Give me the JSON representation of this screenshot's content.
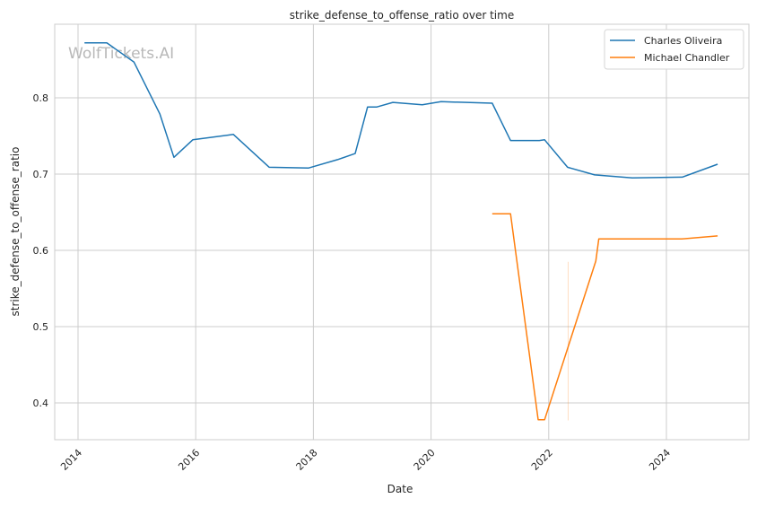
{
  "watermark": "WolfTickets.AI",
  "chart_data": {
    "type": "line",
    "title": "strike_defense_to_offense_ratio over time",
    "xlabel": "Date",
    "ylabel": "strike_defense_to_offense_ratio",
    "xlim": [
      2013.6,
      2025.4
    ],
    "ylim": [
      0.352,
      0.897
    ],
    "xticks": [
      2014,
      2016,
      2018,
      2020,
      2022,
      2024
    ],
    "xtick_labels": [
      "2014",
      "2016",
      "2018",
      "2020",
      "2022",
      "2024"
    ],
    "yticks": [
      0.4,
      0.5,
      0.6,
      0.7,
      0.8
    ],
    "ytick_labels": [
      "0.4",
      "0.5",
      "0.6",
      "0.7",
      "0.8"
    ],
    "grid": true,
    "legend_position": "top-right",
    "series": [
      {
        "name": "Charles Oliveira",
        "color": "#1f77b4",
        "x": [
          2014.11,
          2014.49,
          2014.95,
          2015.39,
          2015.63,
          2015.95,
          2016.64,
          2017.25,
          2017.92,
          2018.41,
          2018.71,
          2018.92,
          2019.08,
          2019.35,
          2019.85,
          2020.17,
          2021.04,
          2021.35,
          2021.84,
          2021.93,
          2022.32,
          2022.78,
          2023.42,
          2024.27,
          2024.87
        ],
        "y": [
          0.872,
          0.872,
          0.847,
          0.779,
          0.722,
          0.745,
          0.752,
          0.709,
          0.708,
          0.719,
          0.727,
          0.788,
          0.788,
          0.794,
          0.791,
          0.795,
          0.793,
          0.744,
          0.744,
          0.745,
          0.709,
          0.699,
          0.695,
          0.696,
          0.713
        ]
      },
      {
        "name": "Michael Chandler",
        "color": "#ff7f0e",
        "x": [
          2021.04,
          2021.35,
          2021.82,
          2021.93,
          2022.8,
          2022.85,
          2024.26,
          2024.87
        ],
        "y": [
          0.648,
          0.648,
          0.378,
          0.378,
          0.586,
          0.615,
          0.615,
          0.619
        ],
        "faint_segment": {
          "x": 2022.33,
          "y": [
            0.377,
            0.585
          ]
        }
      }
    ]
  }
}
